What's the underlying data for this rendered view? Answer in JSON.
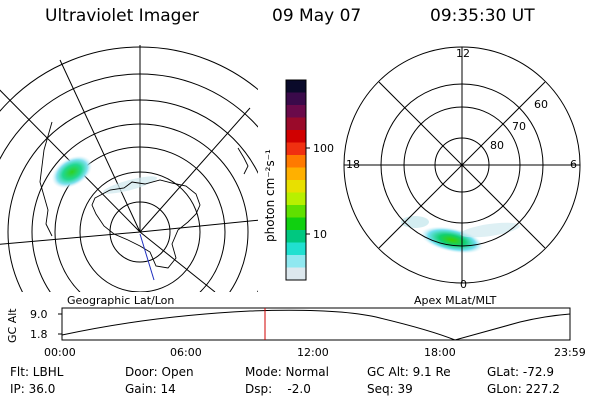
{
  "header": {
    "instrument": "Ultraviolet Imager",
    "date": "09 May 07",
    "time": "09:35:30 UT"
  },
  "geographic_map": {
    "label": "Geographic Lat/Lon"
  },
  "apex_map": {
    "label": "Apex MLat/MLT",
    "mlt_labels": {
      "top": "12",
      "left": "18",
      "right": "6",
      "bottom": "0"
    },
    "mlat_labels": [
      "60",
      "70",
      "80"
    ]
  },
  "colorbar": {
    "unit_label": "photon cm⁻²s⁻¹",
    "tick_labels": [
      "100",
      "10"
    ],
    "colors": [
      "#0a0a2a",
      "#3a0a4a",
      "#6a0a4a",
      "#9a0a2a",
      "#d00000",
      "#f03010",
      "#ff7a00",
      "#ffb000",
      "#e8e000",
      "#b8f000",
      "#60e000",
      "#10d010",
      "#00c880",
      "#20e0d0",
      "#90e8f0",
      "#dde8ee"
    ]
  },
  "orbit_plot": {
    "ylabel": "GC Alt",
    "y_ticks": [
      "9.0",
      "1.8"
    ],
    "x_ticks": [
      "00:00",
      "06:00",
      "12:00",
      "18:00",
      "23:59"
    ],
    "current_time_fraction": 0.3996
  },
  "footer": {
    "filter": "Flt: LBHL",
    "ip": "IP: 36.0",
    "door": "Door: Open",
    "gain": "Gain: 14",
    "mode": "Mode: Normal",
    "dsp": "Dsp:    -2.0",
    "gc_alt": "GC Alt: 9.1 Re",
    "seq": "Seq: 39",
    "glat": "GLat: -72.9",
    "glon": "GLon: 227.2"
  }
}
